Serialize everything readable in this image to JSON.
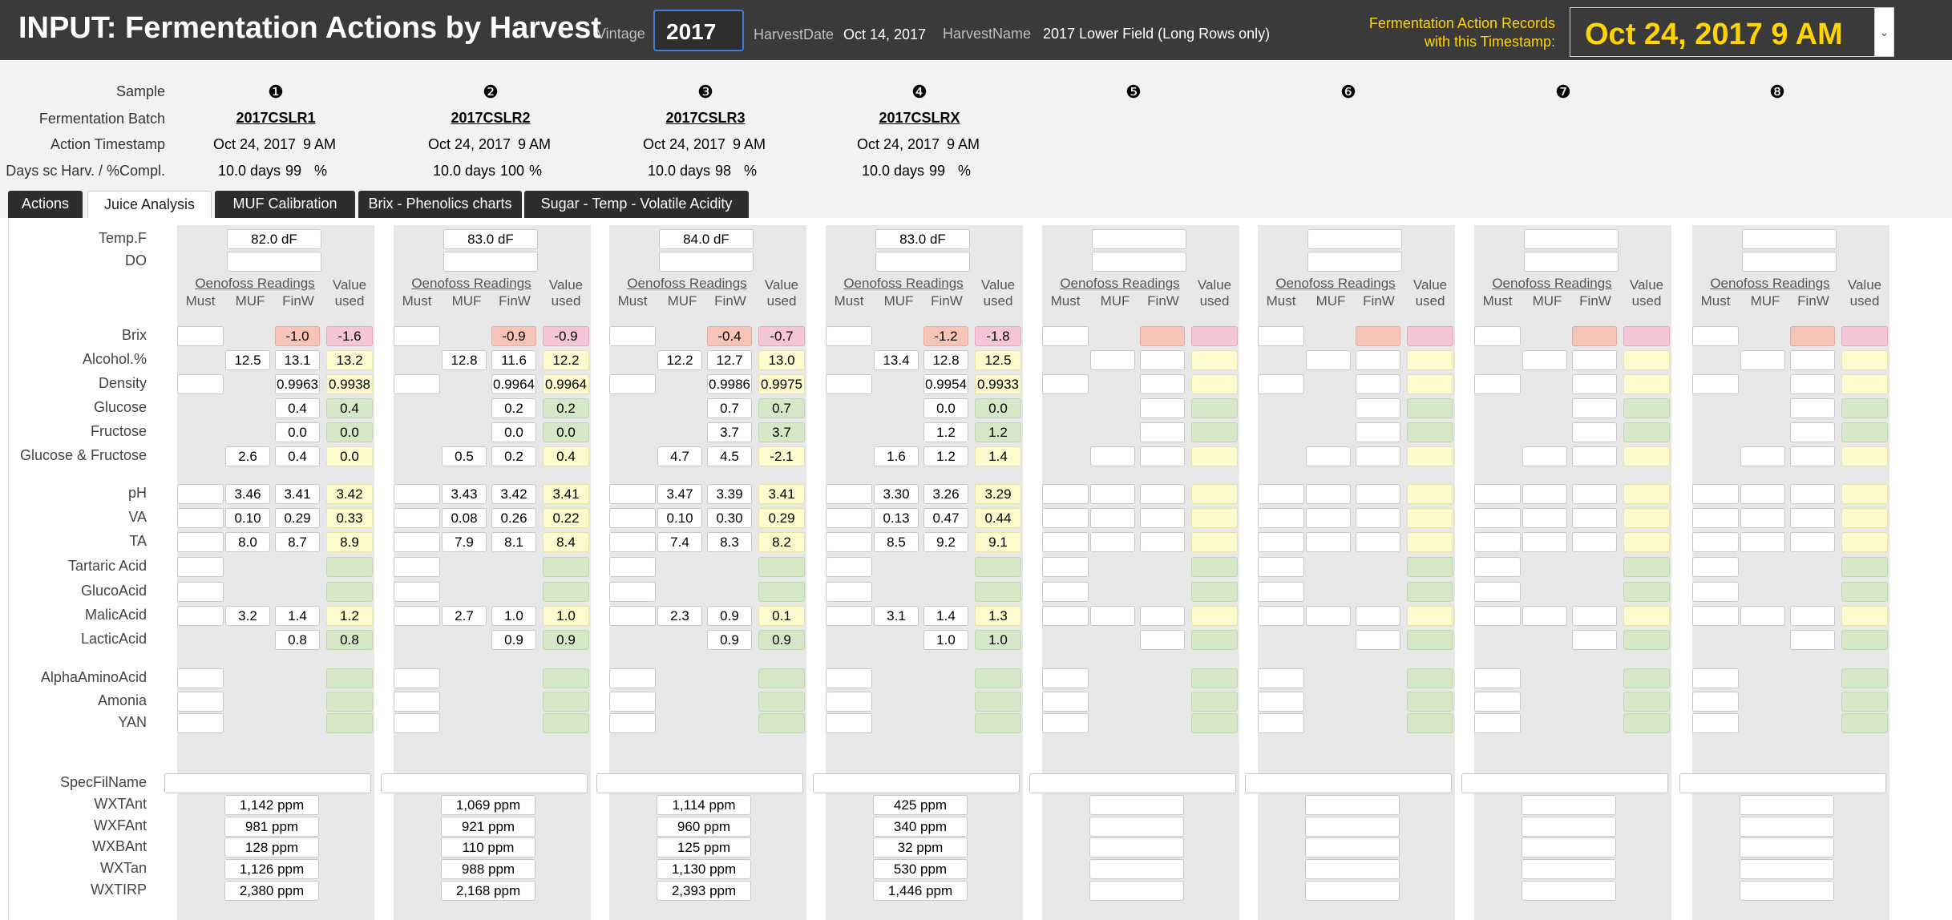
{
  "header": {
    "title": "INPUT: Fermentation Actions by Harvest",
    "vintage_label": "Vintage",
    "vintage_value": "2017",
    "harvest_date_label": "HarvestDate",
    "harvest_date_value": "Oct 14, 2017",
    "harvest_name_label": "HarvestName",
    "harvest_name_value": "2017 Lower Field (Long Rows only)",
    "records_label_line1": "Fermentation Action Records",
    "records_label_line2": "with this Timestamp:",
    "timestamp_value": "Oct 24, 2017  9 AM",
    "colors": {
      "bar": "#3a3a3a",
      "accent": "#ffd400",
      "focus": "#3f7fd6"
    }
  },
  "upper": {
    "labels": {
      "sample": "Sample",
      "batch": "Fermentation Batch",
      "timestamp": "Action Timestamp",
      "days": "Days sc Harv. / %Compl."
    },
    "samples": [
      {
        "num": "❶",
        "batch": "2017CSLR1",
        "date": "Oct 24, 2017",
        "time": "9 AM",
        "days": "10.0 days",
        "pct": "99",
        "pct_unit": "%"
      },
      {
        "num": "❷",
        "batch": "2017CSLR2",
        "date": "Oct 24, 2017",
        "time": "9 AM",
        "days": "10.0 days",
        "pct": "100",
        "pct_unit": "%"
      },
      {
        "num": "❸",
        "batch": "2017CSLR3",
        "date": "Oct 24, 2017",
        "time": "9 AM",
        "days": "10.0 days",
        "pct": "98",
        "pct_unit": "%"
      },
      {
        "num": "❹",
        "batch": "2017CSLRX",
        "date": "Oct 24, 2017",
        "time": "9 AM",
        "days": "10.0 days",
        "pct": "99",
        "pct_unit": "%"
      },
      {
        "num": "❺",
        "batch": "",
        "date": "",
        "time": "",
        "days": "",
        "pct": "",
        "pct_unit": ""
      },
      {
        "num": "❻",
        "batch": "",
        "date": "",
        "time": "",
        "days": "",
        "pct": "",
        "pct_unit": ""
      },
      {
        "num": "❼",
        "batch": "",
        "date": "",
        "time": "",
        "days": "",
        "pct": "",
        "pct_unit": ""
      },
      {
        "num": "❽",
        "batch": "",
        "date": "",
        "time": "",
        "days": "",
        "pct": "",
        "pct_unit": ""
      }
    ]
  },
  "tabs": [
    {
      "label": "Actions",
      "active": false
    },
    {
      "label": "Juice Analysis",
      "active": true
    },
    {
      "label": "MUF Calibration",
      "active": false
    },
    {
      "label": "Brix - Phenolics charts",
      "active": false
    },
    {
      "label": "Sugar - Temp - Volatile Acidity",
      "active": false
    }
  ],
  "panel": {
    "row_labels": {
      "temp": "Temp.F",
      "do": "DO",
      "brix": "Brix",
      "alcohol": "Alcohol.%",
      "density": "Density",
      "glucose": "Glucose",
      "fructose": "Fructose",
      "gluc_fruc": "Glucose & Fructose",
      "ph": "pH",
      "va": "VA",
      "ta": "TA",
      "tartaric": "Tartaric Acid",
      "glucoacid": "GlucoAcid",
      "malic": "MalicAcid",
      "lactic": "LacticAcid",
      "alpha": "AlphaAminoAcid",
      "amonia": "Amonia",
      "yan": "YAN",
      "specfil": "SpecFilName",
      "wxtant": "WXTAnt",
      "wxtfant": "WXFAnt",
      "wxtbant": "WXBAnt",
      "wxttan": "WXTan",
      "wxtirp": "WXTIRP"
    },
    "col_heads": {
      "oenofoss": "Oenofoss Readings",
      "must": "Must",
      "muf": "MUF",
      "finw": "FinW",
      "value": "Value",
      "used": "used"
    },
    "samples": [
      {
        "temp": "82.0 dF",
        "do": "",
        "brix": [
          "",
          "",
          "-1.0",
          "-1.6"
        ],
        "alcohol": [
          "",
          "12.5",
          "13.1",
          "13.2"
        ],
        "density": [
          "",
          "",
          "0.9963",
          "0.9938"
        ],
        "glucose": [
          "",
          "",
          "0.4",
          "0.4"
        ],
        "fructose": [
          "",
          "",
          "0.0",
          "0.0"
        ],
        "gluc_fruc": [
          "",
          "2.6",
          "0.4",
          "0.0"
        ],
        "ph": [
          "",
          "3.46",
          "3.41",
          "3.42"
        ],
        "va": [
          "",
          "0.10",
          "0.29",
          "0.33"
        ],
        "ta": [
          "",
          "8.0",
          "8.7",
          "8.9"
        ],
        "tartaric": [
          "",
          "",
          "",
          ""
        ],
        "glucoacid": [
          "",
          "",
          "",
          ""
        ],
        "malic": [
          "",
          "3.2",
          "1.4",
          "1.2"
        ],
        "lactic": [
          "",
          "",
          "0.8",
          "0.8"
        ],
        "alpha": "",
        "amonia": "",
        "yan": "",
        "specfil": "",
        "wxtant": "1,142 ppm",
        "wxtfant": "981 ppm",
        "wxtbant": "128 ppm",
        "wxttan": "1,126 ppm",
        "wxtirp": "2,380 ppm"
      },
      {
        "temp": "83.0 dF",
        "do": "",
        "brix": [
          "",
          "",
          "-0.9",
          "-0.9"
        ],
        "alcohol": [
          "",
          "12.8",
          "11.6",
          "12.2"
        ],
        "density": [
          "",
          "",
          "0.9964",
          "0.9964"
        ],
        "glucose": [
          "",
          "",
          "0.2",
          "0.2"
        ],
        "fructose": [
          "",
          "",
          "0.0",
          "0.0"
        ],
        "gluc_fruc": [
          "",
          "0.5",
          "0.2",
          "0.4"
        ],
        "ph": [
          "",
          "3.43",
          "3.42",
          "3.41"
        ],
        "va": [
          "",
          "0.08",
          "0.26",
          "0.22"
        ],
        "ta": [
          "",
          "7.9",
          "8.1",
          "8.4"
        ],
        "tartaric": [
          "",
          "",
          "",
          ""
        ],
        "glucoacid": [
          "",
          "",
          "",
          ""
        ],
        "malic": [
          "",
          "2.7",
          "1.0",
          "1.0"
        ],
        "lactic": [
          "",
          "",
          "0.9",
          "0.9"
        ],
        "alpha": "",
        "amonia": "",
        "yan": "",
        "specfil": "",
        "wxtant": "1,069 ppm",
        "wxtfant": "921 ppm",
        "wxtbant": "110 ppm",
        "wxttan": "988 ppm",
        "wxtirp": "2,168 ppm"
      },
      {
        "temp": "84.0 dF",
        "do": "",
        "brix": [
          "",
          "",
          "-0.4",
          "-0.7"
        ],
        "alcohol": [
          "",
          "12.2",
          "12.7",
          "13.0"
        ],
        "density": [
          "",
          "",
          "0.9986",
          "0.9975"
        ],
        "glucose": [
          "",
          "",
          "0.7",
          "0.7"
        ],
        "fructose": [
          "",
          "",
          "3.7",
          "3.7"
        ],
        "gluc_fruc": [
          "",
          "4.7",
          "4.5",
          "-2.1"
        ],
        "ph": [
          "",
          "3.47",
          "3.39",
          "3.41"
        ],
        "va": [
          "",
          "0.10",
          "0.30",
          "0.29"
        ],
        "ta": [
          "",
          "7.4",
          "8.3",
          "8.2"
        ],
        "tartaric": [
          "",
          "",
          "",
          ""
        ],
        "glucoacid": [
          "",
          "",
          "",
          ""
        ],
        "malic": [
          "",
          "2.3",
          "0.9",
          "0.1"
        ],
        "lactic": [
          "",
          "",
          "0.9",
          "0.9"
        ],
        "alpha": "",
        "amonia": "",
        "yan": "",
        "specfil": "",
        "wxtant": "1,114 ppm",
        "wxtfant": "960 ppm",
        "wxtbant": "125 ppm",
        "wxttan": "1,130 ppm",
        "wxtirp": "2,393 ppm"
      },
      {
        "temp": "83.0 dF",
        "do": "",
        "brix": [
          "",
          "",
          "-1.2",
          "-1.8"
        ],
        "alcohol": [
          "",
          "13.4",
          "12.8",
          "12.5"
        ],
        "density": [
          "",
          "",
          "0.9954",
          "0.9933"
        ],
        "glucose": [
          "",
          "",
          "0.0",
          "0.0"
        ],
        "fructose": [
          "",
          "",
          "1.2",
          "1.2"
        ],
        "gluc_fruc": [
          "",
          "1.6",
          "1.2",
          "1.4"
        ],
        "ph": [
          "",
          "3.30",
          "3.26",
          "3.29"
        ],
        "va": [
          "",
          "0.13",
          "0.47",
          "0.44"
        ],
        "ta": [
          "",
          "8.5",
          "9.2",
          "9.1"
        ],
        "tartaric": [
          "",
          "",
          "",
          ""
        ],
        "glucoacid": [
          "",
          "",
          "",
          ""
        ],
        "malic": [
          "",
          "3.1",
          "1.4",
          "1.3"
        ],
        "lactic": [
          "",
          "",
          "1.0",
          "1.0"
        ],
        "alpha": "",
        "amonia": "",
        "yan": "",
        "specfil": "",
        "wxtant": "425 ppm",
        "wxtfant": "340 ppm",
        "wxtbant": "32 ppm",
        "wxttan": "530 ppm",
        "wxtirp": "1,446 ppm"
      },
      {
        "temp": "",
        "do": "",
        "brix": [
          "",
          "",
          "",
          ""
        ],
        "alcohol": [
          "",
          "",
          "",
          ""
        ],
        "density": [
          "",
          "",
          "",
          ""
        ],
        "glucose": [
          "",
          "",
          "",
          ""
        ],
        "fructose": [
          "",
          "",
          "",
          ""
        ],
        "gluc_fruc": [
          "",
          "",
          "",
          ""
        ],
        "ph": [
          "",
          "",
          "",
          ""
        ],
        "va": [
          "",
          "",
          "",
          ""
        ],
        "ta": [
          "",
          "",
          "",
          ""
        ],
        "tartaric": [
          "",
          "",
          "",
          ""
        ],
        "glucoacid": [
          "",
          "",
          "",
          ""
        ],
        "malic": [
          "",
          "",
          "",
          ""
        ],
        "lactic": [
          "",
          "",
          "",
          ""
        ],
        "alpha": "",
        "amonia": "",
        "yan": "",
        "specfil": "",
        "wxtant": "",
        "wxtfant": "",
        "wxtbant": "",
        "wxttan": "",
        "wxtirp": ""
      },
      {
        "temp": "",
        "do": "",
        "brix": [
          "",
          "",
          "",
          ""
        ],
        "alcohol": [
          "",
          "",
          "",
          ""
        ],
        "density": [
          "",
          "",
          "",
          ""
        ],
        "glucose": [
          "",
          "",
          "",
          ""
        ],
        "fructose": [
          "",
          "",
          "",
          ""
        ],
        "gluc_fruc": [
          "",
          "",
          "",
          ""
        ],
        "ph": [
          "",
          "",
          "",
          ""
        ],
        "va": [
          "",
          "",
          "",
          ""
        ],
        "ta": [
          "",
          "",
          "",
          ""
        ],
        "tartaric": [
          "",
          "",
          "",
          ""
        ],
        "glucoacid": [
          "",
          "",
          "",
          ""
        ],
        "malic": [
          "",
          "",
          "",
          ""
        ],
        "lactic": [
          "",
          "",
          "",
          ""
        ],
        "alpha": "",
        "amonia": "",
        "yan": "",
        "specfil": "",
        "wxtant": "",
        "wxtfant": "",
        "wxtbant": "",
        "wxttan": "",
        "wxtirp": ""
      },
      {
        "temp": "",
        "do": "",
        "brix": [
          "",
          "",
          "",
          ""
        ],
        "alcohol": [
          "",
          "",
          "",
          ""
        ],
        "density": [
          "",
          "",
          "",
          ""
        ],
        "glucose": [
          "",
          "",
          "",
          ""
        ],
        "fructose": [
          "",
          "",
          "",
          ""
        ],
        "gluc_fruc": [
          "",
          "",
          "",
          ""
        ],
        "ph": [
          "",
          "",
          "",
          ""
        ],
        "va": [
          "",
          "",
          "",
          ""
        ],
        "ta": [
          "",
          "",
          "",
          ""
        ],
        "tartaric": [
          "",
          "",
          "",
          ""
        ],
        "glucoacid": [
          "",
          "",
          "",
          ""
        ],
        "malic": [
          "",
          "",
          "",
          ""
        ],
        "lactic": [
          "",
          "",
          "",
          ""
        ],
        "alpha": "",
        "amonia": "",
        "yan": "",
        "specfil": "",
        "wxtant": "",
        "wxtfant": "",
        "wxtbant": "",
        "wxttan": "",
        "wxtirp": ""
      },
      {
        "temp": "",
        "do": "",
        "brix": [
          "",
          "",
          "",
          ""
        ],
        "alcohol": [
          "",
          "",
          "",
          ""
        ],
        "density": [
          "",
          "",
          "",
          ""
        ],
        "glucose": [
          "",
          "",
          "",
          ""
        ],
        "fructose": [
          "",
          "",
          "",
          ""
        ],
        "gluc_fruc": [
          "",
          "",
          "",
          ""
        ],
        "ph": [
          "",
          "",
          "",
          ""
        ],
        "va": [
          "",
          "",
          "",
          ""
        ],
        "ta": [
          "",
          "",
          "",
          ""
        ],
        "tartaric": [
          "",
          "",
          "",
          ""
        ],
        "glucoacid": [
          "",
          "",
          "",
          ""
        ],
        "malic": [
          "",
          "",
          "",
          ""
        ],
        "lactic": [
          "",
          "",
          "",
          ""
        ],
        "alpha": "",
        "amonia": "",
        "yan": "",
        "specfil": "",
        "wxtant": "",
        "wxtfant": "",
        "wxtbant": "",
        "wxttan": "",
        "wxtirp": ""
      }
    ]
  }
}
